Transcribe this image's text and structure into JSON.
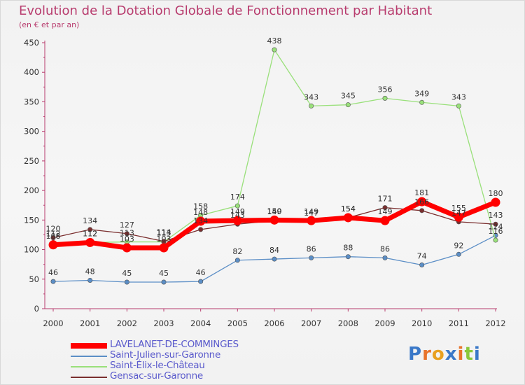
{
  "title": "Evolution de la Dotation Globale de Fonctionnement par Habitant",
  "subtitle": "(en € et par an)",
  "logo": {
    "letters": [
      "P",
      "r",
      "o",
      "x",
      "i",
      "t",
      "i"
    ]
  },
  "chart_data": {
    "type": "line",
    "x": [
      "2000",
      "2001",
      "2002",
      "2003",
      "2004",
      "2005",
      "2006",
      "2007",
      "2008",
      "2009",
      "2010",
      "2011",
      "2012"
    ],
    "ylim": [
      0,
      450
    ],
    "yticks": [
      "0",
      "50",
      "100",
      "150",
      "200",
      "250",
      "300",
      "350",
      "400",
      "450"
    ],
    "grid": false,
    "series": [
      {
        "name": "Saint-Julien-sur-Garonne",
        "color": "#5b8ec6",
        "values": [
          46,
          48,
          45,
          45,
          46,
          82,
          84,
          86,
          88,
          86,
          74,
          92,
          124
        ],
        "labels": [
          "46",
          "48",
          "45",
          "45",
          "46",
          "82",
          "84",
          "86",
          "88",
          "86",
          "74",
          "92",
          "124"
        ]
      },
      {
        "name": "Saint-Élix-le-Château",
        "color": "#99e07a",
        "values": [
          112,
          112,
          113,
          113,
          158,
          174,
          438,
          343,
          345,
          356,
          349,
          343,
          116
        ],
        "labels": [
          "112",
          "112",
          "113",
          "113",
          "158",
          "174",
          "438",
          "343",
          "345",
          "356",
          "349",
          "343",
          "116"
        ]
      },
      {
        "name": "Gensac-sur-Garonne",
        "color": "#7a2e2e",
        "values": [
          120,
          134,
          127,
          114,
          134,
          143,
          149,
          147,
          154,
          171,
          166,
          147,
          143
        ],
        "labels": [
          "120",
          "134",
          "127",
          "114",
          "134",
          "143",
          "149",
          "147",
          "154",
          "171",
          "166",
          "147",
          "143"
        ]
      },
      {
        "name": "LAVELANET-DE-COMMINGES",
        "color": "#ff0000",
        "values": [
          108,
          112,
          103,
          103,
          148,
          149,
          150,
          149,
          154,
          149,
          181,
          155,
          180
        ],
        "labels": [
          "108",
          "112",
          "103",
          "103",
          "148",
          "149",
          "150",
          "149",
          "154",
          "149",
          "181",
          "155",
          "180"
        ]
      }
    ]
  },
  "legend": [
    {
      "name": "LAVELANET-DE-COMMINGES",
      "color": "#ff0000"
    },
    {
      "name": "Saint-Julien-sur-Garonne",
      "color": "#5b8ec6"
    },
    {
      "name": "Saint-Élix-le-Château",
      "color": "#99e07a"
    },
    {
      "name": "Gensac-sur-Garonne",
      "color": "#7a2e2e"
    }
  ]
}
